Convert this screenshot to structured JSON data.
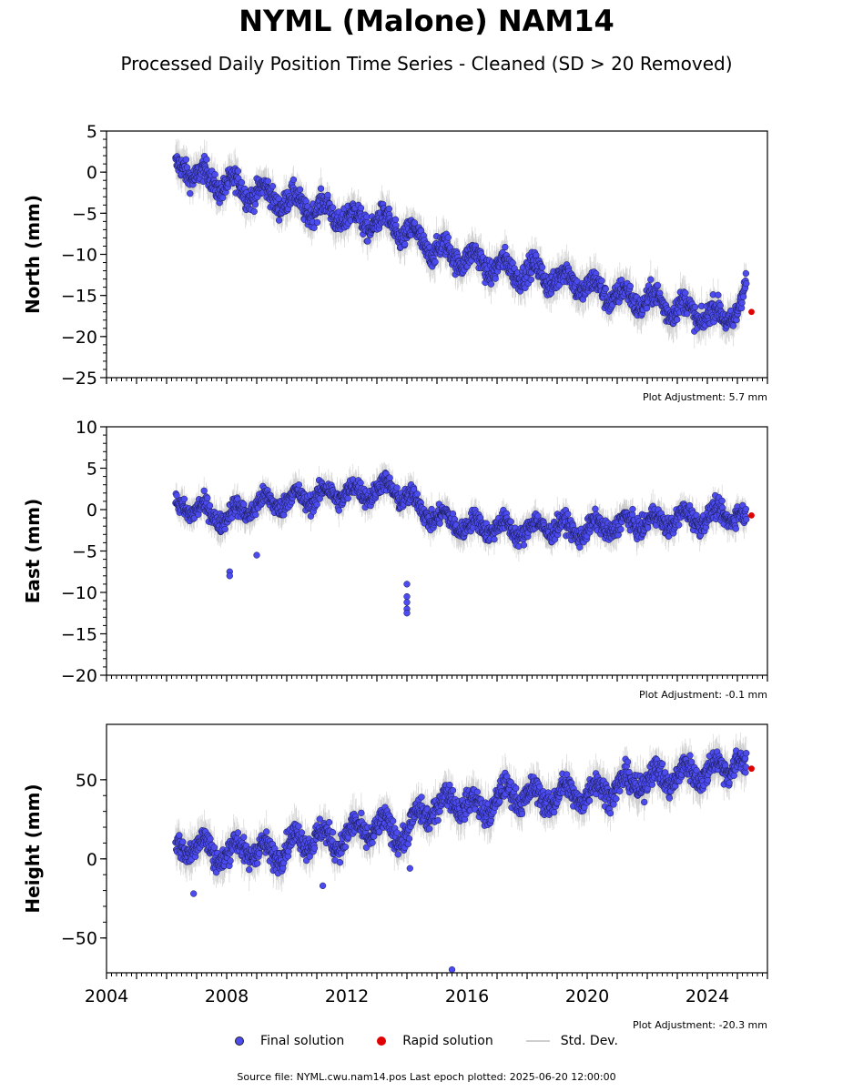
{
  "title": "NYML (Malone) NAM14",
  "subtitle": "Processed Daily Position Time Series - Cleaned (SD > 20 Removed)",
  "legend": {
    "final": "Final solution",
    "rapid": "Rapid solution",
    "std": "Std. Dev."
  },
  "footer": "Source file: NYML.cwu.nam14.pos  Last epoch plotted: 2025-06-20 12:00:00",
  "colors": {
    "final_fill": "#4b4bf0",
    "final_edge": "#1a1a4a",
    "rapid": "#e00000",
    "std": "#bdbdbd"
  },
  "chart_data": [
    {
      "type": "scatter",
      "ylabel": "North (mm)",
      "adjustment_label": "Plot Adjustment: 5.7 mm",
      "xlim": [
        2004,
        2026
      ],
      "ylim": [
        -25,
        5
      ],
      "y_ticks": [
        5,
        0,
        -5,
        -10,
        -15,
        -20,
        -25
      ],
      "y_tick_labels": [
        "5",
        "0",
        "−5",
        "−10",
        "−15",
        "−20",
        "−25"
      ],
      "series": [
        {
          "role": "final",
          "x": [
            2006.3,
            2006.6,
            2007,
            2007.5,
            2008,
            2008.5,
            2009,
            2009.5,
            2010,
            2010.5,
            2011,
            2011.5,
            2012,
            2012.5,
            2013,
            2013.5,
            2014,
            2014.5,
            2015,
            2015.5,
            2016,
            2016.5,
            2017,
            2017.5,
            2018,
            2018.5,
            2019,
            2019.5,
            2020,
            2020.5,
            2021,
            2021.5,
            2022,
            2022.5,
            2023,
            2023.5,
            2024,
            2024.5,
            2025,
            2025.3
          ],
          "y": [
            0,
            1,
            -0.5,
            -1,
            -1.5,
            -2,
            -2.5,
            -3,
            -3.5,
            -4,
            -4.5,
            -5,
            -5.5,
            -6,
            -6,
            -6.5,
            -7.5,
            -8.5,
            -9.5,
            -10,
            -10.5,
            -11,
            -11.5,
            -12,
            -12,
            -12.5,
            -13,
            -13,
            -14,
            -14.5,
            -15,
            -15.5,
            -15.5,
            -16,
            -16.5,
            -17,
            -17.5,
            -17.5,
            -17,
            -14.5
          ],
          "spread": 2.2
        },
        {
          "role": "rapid",
          "x": [
            2025.47
          ],
          "y": [
            -17
          ]
        }
      ]
    },
    {
      "type": "scatter",
      "ylabel": "East (mm)",
      "adjustment_label": "Plot Adjustment: -0.1 mm",
      "xlim": [
        2004,
        2026
      ],
      "ylim": [
        -20,
        10
      ],
      "y_ticks": [
        10,
        5,
        0,
        -5,
        -10,
        -15,
        -20
      ],
      "y_tick_labels": [
        "10",
        "5",
        "0",
        "−5",
        "−10",
        "−15",
        "−20"
      ],
      "series": [
        {
          "role": "final",
          "x": [
            2006.3,
            2006.6,
            2007,
            2007.5,
            2008,
            2008.5,
            2009,
            2009.5,
            2010,
            2010.5,
            2011,
            2011.5,
            2012,
            2012.5,
            2013,
            2013.5,
            2014,
            2014.5,
            2015,
            2015.5,
            2016,
            2016.5,
            2017,
            2017.5,
            2018,
            2018.5,
            2019,
            2019.5,
            2020,
            2020.5,
            2021,
            2021.5,
            2022,
            2022.5,
            2023,
            2023.5,
            2024,
            2024.5,
            2025,
            2025.3
          ],
          "y": [
            0,
            0.5,
            0,
            -0.5,
            -1,
            0,
            0.5,
            1,
            1,
            1.5,
            1.5,
            2,
            2,
            2,
            2.5,
            2.5,
            1.5,
            0,
            -1,
            -1.5,
            -2,
            -2,
            -2,
            -2.5,
            -2.5,
            -2,
            -2,
            -2.5,
            -2.5,
            -2,
            -2,
            -1.5,
            -1.5,
            -1.5,
            -1,
            -1,
            -1,
            -0.5,
            -0.5,
            -1.8
          ],
          "spread": 1.8
        },
        {
          "role": "final_outliers",
          "x": [
            2008.1,
            2008.1,
            2009,
            2014,
            2014,
            2014,
            2014,
            2014
          ],
          "y": [
            -7.5,
            -8,
            -5.5,
            -9,
            -10.5,
            -11.2,
            -12,
            -12.5
          ]
        },
        {
          "role": "rapid",
          "x": [
            2025.47
          ],
          "y": [
            -0.7
          ]
        }
      ]
    },
    {
      "type": "scatter",
      "ylabel": "Height (mm)",
      "adjustment_label": "Plot Adjustment: -20.3 mm",
      "xlim": [
        2004,
        2026
      ],
      "ylim": [
        -72,
        85
      ],
      "x_ticks": [
        2004,
        2008,
        2012,
        2016,
        2020,
        2024
      ],
      "x_tick_labels": [
        "2004",
        "2008",
        "2012",
        "2016",
        "2020",
        "2024"
      ],
      "y_ticks": [
        50,
        0,
        -50
      ],
      "y_tick_labels": [
        "50",
        "0",
        "−50"
      ],
      "series": [
        {
          "role": "final",
          "x": [
            2006.3,
            2006.6,
            2007,
            2007.5,
            2008,
            2008.5,
            2009,
            2009.5,
            2010,
            2010.5,
            2011,
            2011.5,
            2012,
            2012.5,
            2013,
            2013.5,
            2014,
            2014.5,
            2015,
            2015.5,
            2016,
            2016.5,
            2017,
            2017.5,
            2018,
            2018.5,
            2019,
            2019.5,
            2020,
            2020.5,
            2021,
            2021.5,
            2022,
            2022.5,
            2023,
            2023.5,
            2024,
            2024.5,
            2025,
            2025.3
          ],
          "y": [
            5,
            8,
            10,
            5,
            2,
            8,
            5,
            3,
            8,
            12,
            15,
            10,
            15,
            18,
            20,
            18,
            15,
            30,
            32,
            38,
            35,
            30,
            38,
            42,
            40,
            38,
            40,
            42,
            40,
            45,
            45,
            48,
            50,
            52,
            52,
            55,
            55,
            58,
            62,
            55
          ],
          "spread": 12
        },
        {
          "role": "final_outliers",
          "x": [
            2006.9,
            2011.2,
            2014.1,
            2015.5
          ],
          "y": [
            -22,
            -17,
            -6,
            -70
          ]
        },
        {
          "role": "rapid",
          "x": [
            2025.47
          ],
          "y": [
            57
          ]
        }
      ]
    }
  ]
}
